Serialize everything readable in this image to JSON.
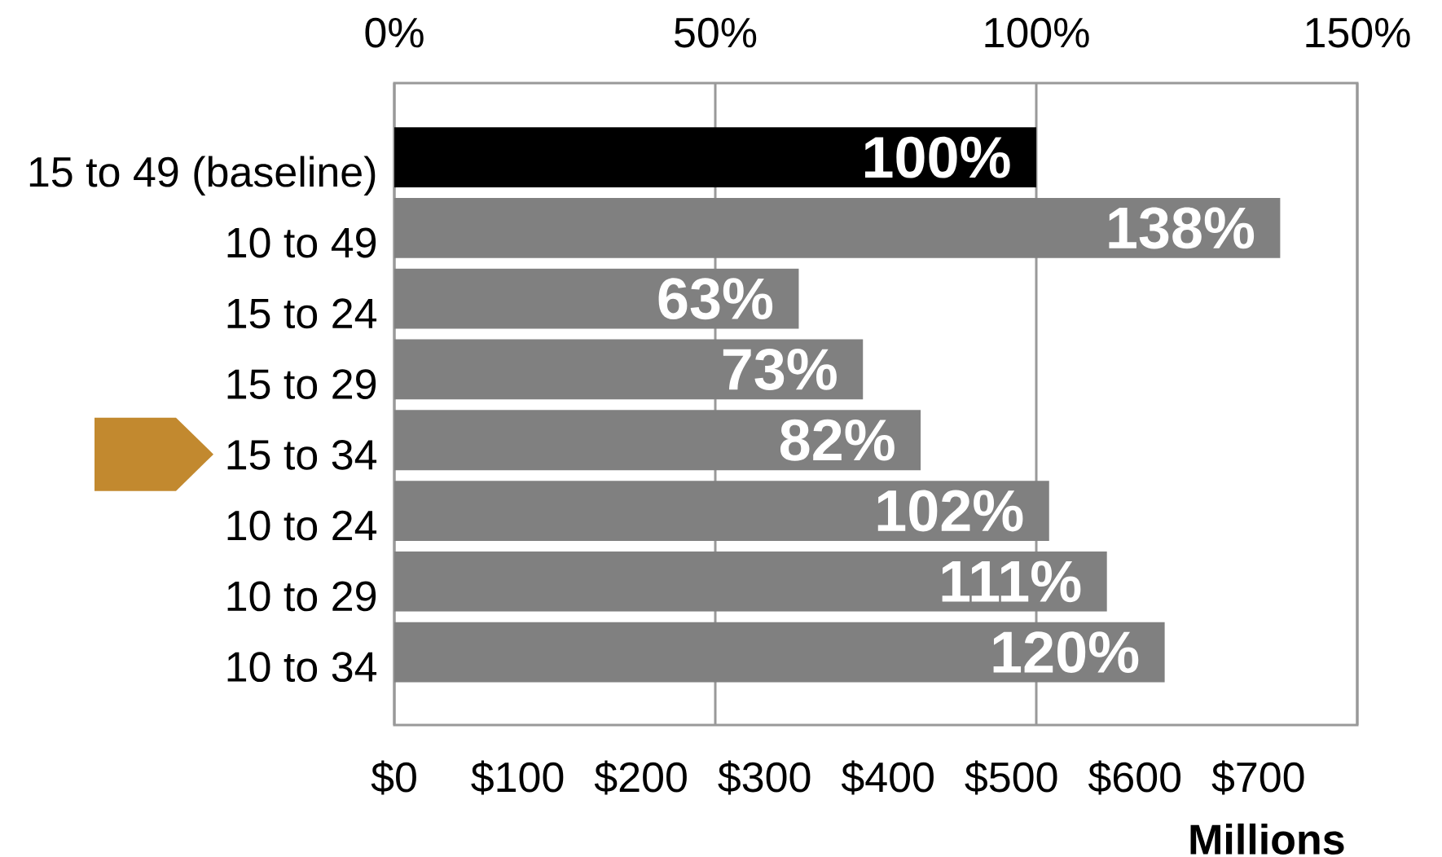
{
  "chart_data": {
    "type": "bar",
    "orientation": "horizontal",
    "categories": [
      "15 to 49 (baseline)",
      "10 to 49",
      "15 to 24",
      "15 to 29",
      "15 to 34",
      "10 to 24",
      "10 to 29",
      "10 to 34"
    ],
    "series": [
      {
        "axis": "x2",
        "colors": [
          "#000000",
          "#808080",
          "#808080",
          "#808080",
          "#808080",
          "#808080",
          "#808080",
          "#808080"
        ],
        "values": [
          100,
          138,
          63,
          73,
          82,
          102,
          111,
          120
        ],
        "value_labels": [
          "100%",
          "138%",
          "63%",
          "73%",
          "82%",
          "102%",
          "111%",
          "120%"
        ]
      }
    ],
    "xlabel": "Millions",
    "xlim": [
      0,
      780
    ],
    "xticks": [
      {
        "value": 0,
        "label": "$0"
      },
      {
        "value": 100,
        "label": "$100"
      },
      {
        "value": 200,
        "label": "$200"
      },
      {
        "value": 300,
        "label": "$300"
      },
      {
        "value": 400,
        "label": "$400"
      },
      {
        "value": 500,
        "label": "$500"
      },
      {
        "value": 600,
        "label": "$600"
      },
      {
        "value": 700,
        "label": "$700"
      }
    ],
    "x2lim": [
      0,
      150
    ],
    "x2ticks": [
      {
        "value": 0,
        "label": "0%"
      },
      {
        "value": 50,
        "label": "50%"
      },
      {
        "value": 100,
        "label": "100%"
      },
      {
        "value": 150,
        "label": "150%"
      }
    ],
    "grid": "x"
  }
}
